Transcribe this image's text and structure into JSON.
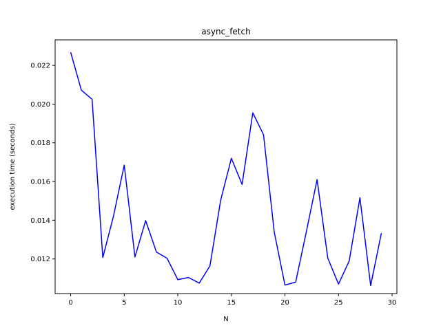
{
  "chart_data": {
    "type": "line",
    "title": "async_fetch",
    "xlabel": "N",
    "ylabel": "execution time (seconds)",
    "xlim": [
      -1.45,
      30.45
    ],
    "ylim": [
      0.01021,
      0.02332
    ],
    "xticks": [
      0,
      5,
      10,
      15,
      20,
      25,
      30
    ],
    "xtick_labels": [
      "0",
      "5",
      "10",
      "15",
      "20",
      "25",
      "30"
    ],
    "yticks": [
      0.012,
      0.014,
      0.016,
      0.018,
      0.02,
      0.022
    ],
    "ytick_labels": [
      "0.012",
      "0.014",
      "0.016",
      "0.018",
      "0.020",
      "0.022"
    ],
    "grid": false,
    "series": [
      {
        "color": "#0000ff",
        "x": [
          0,
          1,
          2,
          3,
          4,
          5,
          6,
          7,
          8,
          9,
          10,
          11,
          12,
          13,
          14,
          15,
          16,
          17,
          18,
          19,
          20,
          21,
          22,
          23,
          24,
          25,
          26,
          27,
          28,
          29
        ],
        "values": [
          0.02268,
          0.02072,
          0.02025,
          0.01207,
          0.01422,
          0.01685,
          0.0121,
          0.01398,
          0.01236,
          0.01203,
          0.01093,
          0.01104,
          0.01075,
          0.01164,
          0.01503,
          0.0172,
          0.01585,
          0.01955,
          0.01842,
          0.01339,
          0.01065,
          0.0108,
          0.01341,
          0.0161,
          0.01204,
          0.0107,
          0.0119,
          0.01516,
          0.01062,
          0.01333
        ]
      }
    ]
  }
}
